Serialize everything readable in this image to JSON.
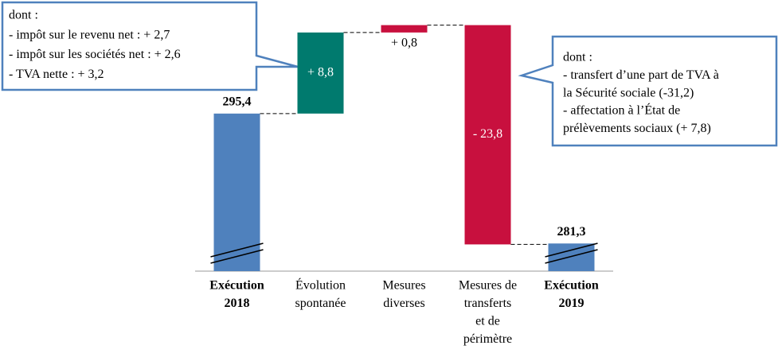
{
  "chart_data": {
    "type": "waterfall",
    "categories": [
      [
        "Exécution",
        "2018"
      ],
      [
        "Évolution",
        "spontanée"
      ],
      [
        "Mesures",
        "diverses"
      ],
      [
        "Mesures de",
        "transferts",
        "et de",
        "périmètre"
      ],
      [
        "Exécution",
        "2019"
      ]
    ],
    "values": [
      295.4,
      8.8,
      0.8,
      -23.8,
      281.3
    ],
    "value_labels": [
      "295,4",
      "+ 8,8",
      "+ 0,8",
      "- 23,8",
      "281,3"
    ],
    "totals": [
      true,
      false,
      false,
      false,
      true
    ],
    "colors": [
      "#4f81bd",
      "#007a6e",
      "#c8103e",
      "#c8103e",
      "#4f81bd"
    ],
    "ylim": [
      278.3,
      306
    ],
    "annotations": [
      {
        "lines": [
          "dont :",
          "- impôt sur le revenu net : + 2,7",
          "- impôt sur les sociétés net : + 2,6",
          "- TVA nette : + 3,2"
        ]
      },
      {
        "lines": [
          "dont :",
          "- transfert d’une part de TVA à",
          "la Sécurité sociale (-31,2)",
          "- affectation à l’État de",
          "prélèvements sociaux (+ 7,8)"
        ]
      }
    ]
  }
}
